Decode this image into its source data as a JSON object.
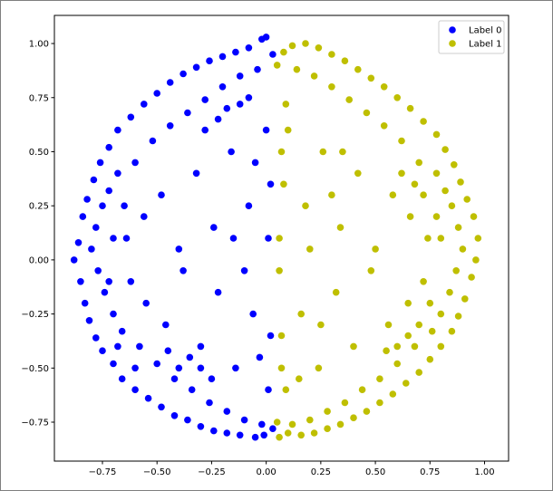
{
  "chart_data": {
    "type": "scatter",
    "title": "",
    "xlabel": "",
    "ylabel": "",
    "xlim": [
      -0.97,
      1.11
    ],
    "ylim": [
      -0.93,
      1.13
    ],
    "x_ticks": [
      -0.75,
      -0.5,
      -0.25,
      0.0,
      0.25,
      0.5,
      0.75,
      1.0
    ],
    "x_tick_labels": [
      "−0.75",
      "−0.50",
      "−0.25",
      "0.00",
      "0.25",
      "0.50",
      "0.75",
      "1.00"
    ],
    "y_ticks": [
      -0.75,
      -0.5,
      -0.25,
      0.0,
      0.25,
      0.5,
      0.75,
      1.0
    ],
    "y_tick_labels": [
      "−0.75",
      "−0.50",
      "−0.25",
      "0.00",
      "0.25",
      "0.50",
      "0.75",
      "1.00"
    ],
    "grid": false,
    "legend_position": "top-right",
    "series": [
      {
        "name": "Label 0",
        "color": "#0000ff",
        "points": [
          [
            -0.88,
            0.0
          ],
          [
            -0.86,
            0.08
          ],
          [
            -0.85,
            -0.1
          ],
          [
            -0.84,
            0.2
          ],
          [
            -0.83,
            -0.2
          ],
          [
            -0.82,
            0.28
          ],
          [
            -0.81,
            -0.28
          ],
          [
            -0.79,
            0.37
          ],
          [
            -0.78,
            -0.36
          ],
          [
            -0.76,
            0.45
          ],
          [
            -0.75,
            -0.42
          ],
          [
            -0.72,
            0.52
          ],
          [
            -0.7,
            -0.48
          ],
          [
            -0.68,
            0.6
          ],
          [
            -0.66,
            -0.55
          ],
          [
            -0.62,
            0.66
          ],
          [
            -0.6,
            -0.6
          ],
          [
            -0.56,
            0.72
          ],
          [
            -0.54,
            -0.64
          ],
          [
            -0.5,
            0.77
          ],
          [
            -0.48,
            -0.68
          ],
          [
            -0.44,
            0.82
          ],
          [
            -0.42,
            -0.72
          ],
          [
            -0.38,
            0.86
          ],
          [
            -0.36,
            -0.74
          ],
          [
            -0.32,
            0.89
          ],
          [
            -0.3,
            -0.77
          ],
          [
            -0.26,
            0.92
          ],
          [
            -0.24,
            -0.79
          ],
          [
            -0.2,
            0.94
          ],
          [
            -0.18,
            -0.8
          ],
          [
            -0.14,
            0.96
          ],
          [
            -0.12,
            -0.81
          ],
          [
            -0.08,
            0.98
          ],
          [
            -0.05,
            -0.82
          ],
          [
            -0.02,
            1.02
          ],
          [
            0.0,
            1.03
          ],
          [
            -0.01,
            -0.81
          ],
          [
            0.03,
            0.95
          ],
          [
            0.03,
            -0.78
          ],
          [
            -0.8,
            0.05
          ],
          [
            -0.78,
            0.15
          ],
          [
            -0.77,
            -0.05
          ],
          [
            -0.75,
            0.25
          ],
          [
            -0.74,
            -0.15
          ],
          [
            -0.72,
            0.32
          ],
          [
            -0.7,
            -0.25
          ],
          [
            -0.68,
            0.4
          ],
          [
            -0.66,
            -0.33
          ],
          [
            -0.64,
            0.1
          ],
          [
            -0.62,
            -0.1
          ],
          [
            -0.6,
            0.45
          ],
          [
            -0.58,
            -0.4
          ],
          [
            -0.56,
            0.2
          ],
          [
            -0.55,
            -0.2
          ],
          [
            -0.52,
            0.55
          ],
          [
            -0.5,
            -0.48
          ],
          [
            -0.48,
            0.3
          ],
          [
            -0.46,
            -0.3
          ],
          [
            -0.44,
            0.62
          ],
          [
            -0.42,
            -0.55
          ],
          [
            -0.4,
            0.05
          ],
          [
            -0.38,
            -0.05
          ],
          [
            -0.36,
            0.68
          ],
          [
            -0.34,
            -0.6
          ],
          [
            -0.32,
            0.4
          ],
          [
            -0.3,
            -0.4
          ],
          [
            -0.28,
            0.74
          ],
          [
            -0.26,
            -0.66
          ],
          [
            -0.24,
            0.15
          ],
          [
            -0.22,
            -0.15
          ],
          [
            -0.2,
            0.8
          ],
          [
            -0.18,
            -0.7
          ],
          [
            -0.16,
            0.5
          ],
          [
            -0.14,
            -0.5
          ],
          [
            -0.12,
            0.85
          ],
          [
            -0.1,
            -0.74
          ],
          [
            -0.08,
            0.25
          ],
          [
            -0.06,
            -0.25
          ],
          [
            -0.04,
            0.88
          ],
          [
            -0.02,
            -0.76
          ],
          [
            0.0,
            0.6
          ],
          [
            0.01,
            -0.6
          ],
          [
            0.02,
            0.35
          ],
          [
            0.02,
            -0.35
          ],
          [
            -0.35,
            -0.45
          ],
          [
            -0.3,
            -0.5
          ],
          [
            -0.25,
            -0.55
          ],
          [
            -0.4,
            -0.5
          ],
          [
            -0.45,
            -0.42
          ],
          [
            -0.28,
            0.6
          ],
          [
            -0.22,
            0.65
          ],
          [
            -0.18,
            0.7
          ],
          [
            -0.12,
            0.72
          ],
          [
            -0.08,
            0.75
          ],
          [
            -0.65,
            0.25
          ],
          [
            -0.7,
            0.1
          ],
          [
            -0.72,
            -0.1
          ],
          [
            -0.68,
            -0.4
          ],
          [
            -0.6,
            -0.5
          ],
          [
            -0.15,
            0.1
          ],
          [
            -0.1,
            -0.05
          ],
          [
            -0.05,
            0.45
          ],
          [
            -0.03,
            -0.45
          ],
          [
            0.01,
            0.1
          ]
        ]
      },
      {
        "name": "Label 1",
        "color": "#bfbf00",
        "points": [
          [
            0.97,
            0.1
          ],
          [
            0.96,
            0.0
          ],
          [
            0.95,
            0.2
          ],
          [
            0.94,
            -0.08
          ],
          [
            0.92,
            0.28
          ],
          [
            0.91,
            -0.18
          ],
          [
            0.89,
            0.36
          ],
          [
            0.88,
            -0.26
          ],
          [
            0.86,
            0.44
          ],
          [
            0.85,
            -0.33
          ],
          [
            0.82,
            0.51
          ],
          [
            0.8,
            -0.4
          ],
          [
            0.78,
            0.58
          ],
          [
            0.75,
            -0.46
          ],
          [
            0.72,
            0.64
          ],
          [
            0.7,
            -0.52
          ],
          [
            0.66,
            0.7
          ],
          [
            0.64,
            -0.57
          ],
          [
            0.6,
            0.75
          ],
          [
            0.58,
            -0.62
          ],
          [
            0.54,
            0.8
          ],
          [
            0.52,
            -0.66
          ],
          [
            0.48,
            0.84
          ],
          [
            0.46,
            -0.7
          ],
          [
            0.42,
            0.88
          ],
          [
            0.4,
            -0.73
          ],
          [
            0.36,
            0.92
          ],
          [
            0.34,
            -0.76
          ],
          [
            0.3,
            0.95
          ],
          [
            0.28,
            -0.78
          ],
          [
            0.24,
            0.98
          ],
          [
            0.22,
            -0.8
          ],
          [
            0.18,
            1.0
          ],
          [
            0.16,
            -0.81
          ],
          [
            0.12,
            0.99
          ],
          [
            0.1,
            -0.8
          ],
          [
            0.08,
            0.96
          ],
          [
            0.06,
            -0.82
          ],
          [
            0.05,
            0.9
          ],
          [
            0.05,
            -0.75
          ],
          [
            0.9,
            0.05
          ],
          [
            0.88,
            0.15
          ],
          [
            0.87,
            -0.05
          ],
          [
            0.85,
            0.25
          ],
          [
            0.84,
            -0.15
          ],
          [
            0.82,
            0.32
          ],
          [
            0.8,
            -0.25
          ],
          [
            0.78,
            0.4
          ],
          [
            0.76,
            -0.33
          ],
          [
            0.74,
            0.1
          ],
          [
            0.72,
            -0.1
          ],
          [
            0.7,
            0.45
          ],
          [
            0.68,
            -0.4
          ],
          [
            0.66,
            0.2
          ],
          [
            0.65,
            -0.2
          ],
          [
            0.62,
            0.55
          ],
          [
            0.6,
            -0.48
          ],
          [
            0.58,
            0.3
          ],
          [
            0.56,
            -0.3
          ],
          [
            0.54,
            0.62
          ],
          [
            0.52,
            -0.55
          ],
          [
            0.5,
            0.05
          ],
          [
            0.48,
            -0.05
          ],
          [
            0.46,
            0.68
          ],
          [
            0.44,
            -0.6
          ],
          [
            0.42,
            0.4
          ],
          [
            0.4,
            -0.4
          ],
          [
            0.38,
            0.74
          ],
          [
            0.36,
            -0.66
          ],
          [
            0.34,
            0.15
          ],
          [
            0.32,
            -0.15
          ],
          [
            0.3,
            0.8
          ],
          [
            0.28,
            -0.7
          ],
          [
            0.26,
            0.5
          ],
          [
            0.24,
            -0.5
          ],
          [
            0.22,
            0.85
          ],
          [
            0.2,
            -0.74
          ],
          [
            0.18,
            0.25
          ],
          [
            0.16,
            -0.25
          ],
          [
            0.14,
            0.88
          ],
          [
            0.12,
            -0.76
          ],
          [
            0.1,
            0.6
          ],
          [
            0.09,
            -0.6
          ],
          [
            0.08,
            0.35
          ],
          [
            0.07,
            -0.35
          ],
          [
            0.06,
            0.1
          ],
          [
            0.06,
            -0.05
          ],
          [
            0.07,
            0.5
          ],
          [
            0.07,
            -0.5
          ],
          [
            0.09,
            0.72
          ],
          [
            0.65,
            -0.35
          ],
          [
            0.6,
            -0.4
          ],
          [
            0.7,
            -0.3
          ],
          [
            0.75,
            -0.2
          ],
          [
            0.55,
            -0.42
          ],
          [
            0.72,
            0.3
          ],
          [
            0.78,
            0.2
          ],
          [
            0.8,
            0.1
          ],
          [
            0.68,
            0.35
          ],
          [
            0.62,
            0.4
          ],
          [
            0.35,
            0.5
          ],
          [
            0.3,
            0.3
          ],
          [
            0.25,
            -0.3
          ],
          [
            0.2,
            0.05
          ],
          [
            0.15,
            -0.55
          ]
        ]
      }
    ]
  }
}
